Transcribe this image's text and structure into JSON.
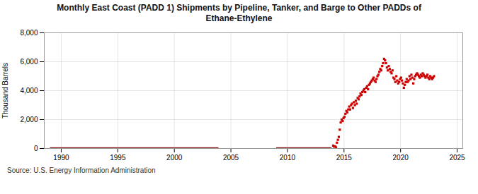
{
  "chart_data": {
    "type": "scatter",
    "title": "Monthly East Coast (PADD 1) Shipments by Pipeline, Tanker, and Barge to Other PADDs of\nEthane-Ethylene",
    "ylabel": "Thousand Barrels",
    "source": "Source: U.S. Energy Information Administration",
    "xlim": [
      1988.5,
      2025.5
    ],
    "ylim": [
      0,
      8000
    ],
    "xticks": [
      1990,
      1995,
      2000,
      2005,
      2010,
      2015,
      2020,
      2025
    ],
    "yticks": [
      0,
      {
        "value": 2000,
        "label": "2,000"
      },
      {
        "value": 4000,
        "label": "4,000"
      },
      {
        "value": 6000,
        "label": "6,000"
      },
      {
        "value": 8000,
        "label": "8,000"
      }
    ],
    "grid": true,
    "series": [
      {
        "type": "line",
        "color": "#8b1a1a",
        "x": [
          1989.0,
          2003.9
        ],
        "values": [
          0,
          0
        ]
      },
      {
        "type": "line",
        "color": "#8b1a1a",
        "x": [
          2009.0,
          2013.9
        ],
        "values": [
          0,
          0
        ]
      },
      {
        "type": "scatter",
        "color": "#cc0000",
        "marker": "square",
        "x": [
          2014.041667,
          2014.125,
          2014.208333,
          2014.291667,
          2014.375,
          2014.458333,
          2014.541667,
          2014.625,
          2014.708333,
          2014.791667,
          2014.875,
          2014.958333,
          2015.041667,
          2015.125,
          2015.208333,
          2015.291667,
          2015.375,
          2015.458333,
          2015.541667,
          2015.625,
          2015.708333,
          2015.791667,
          2015.875,
          2015.958333,
          2016.041667,
          2016.125,
          2016.208333,
          2016.291667,
          2016.375,
          2016.458333,
          2016.541667,
          2016.625,
          2016.708333,
          2016.791667,
          2016.875,
          2016.958333,
          2017.041667,
          2017.125,
          2017.208333,
          2017.291667,
          2017.375,
          2017.458333,
          2017.541667,
          2017.625,
          2017.708333,
          2017.791667,
          2017.875,
          2017.958333,
          2018.041667,
          2018.125,
          2018.208333,
          2018.291667,
          2018.375,
          2018.458333,
          2018.541667,
          2018.625,
          2018.708333,
          2018.791667,
          2018.875,
          2018.958333,
          2019.041667,
          2019.125,
          2019.208333,
          2019.291667,
          2019.375,
          2019.458333,
          2019.541667,
          2019.625,
          2019.708333,
          2019.791667,
          2019.875,
          2019.958333,
          2020.041667,
          2020.125,
          2020.208333,
          2020.291667,
          2020.375,
          2020.458333,
          2020.541667,
          2020.625,
          2020.708333,
          2020.791667,
          2020.875,
          2020.958333,
          2021.041667,
          2021.125,
          2021.208333,
          2021.291667,
          2021.375,
          2021.458333,
          2021.541667,
          2021.625,
          2021.708333,
          2021.791667,
          2021.875,
          2021.958333,
          2022.041667,
          2022.125,
          2022.208333,
          2022.291667,
          2022.375,
          2022.458333,
          2022.541667,
          2022.625,
          2022.708333,
          2022.791667,
          2022.875,
          2022.958333
        ],
        "values": [
          200,
          130,
          150,
          80,
          400,
          600,
          800,
          1300,
          1800,
          2000,
          1900,
          2100,
          2200,
          2400,
          2600,
          2500,
          2700,
          2900,
          2700,
          3000,
          3100,
          2800,
          3200,
          3000,
          3300,
          3100,
          3500,
          3400,
          3600,
          3800,
          3700,
          3900,
          4000,
          4100,
          3900,
          4200,
          4300,
          4100,
          4400,
          4500,
          4600,
          4700,
          4800,
          4900,
          4700,
          4600,
          4800,
          5000,
          5100,
          5300,
          5500,
          5400,
          5700,
          5900,
          6200,
          6100,
          5900,
          5600,
          5400,
          5700,
          5500,
          5300,
          5200,
          5400,
          4900,
          4800,
          4600,
          5000,
          4700,
          4500,
          4600,
          4800,
          4900,
          4700,
          4500,
          4200,
          4400,
          4600,
          4800,
          4600,
          4700,
          5000,
          4800,
          5100,
          4900,
          4500,
          4800,
          5000,
          5100,
          5200,
          5100,
          5000,
          4900,
          5100,
          5000,
          5200,
          5100,
          5000,
          4900,
          5000,
          5100,
          4900,
          4800,
          5000,
          4900,
          4800,
          4900,
          5000
        ]
      }
    ]
  }
}
